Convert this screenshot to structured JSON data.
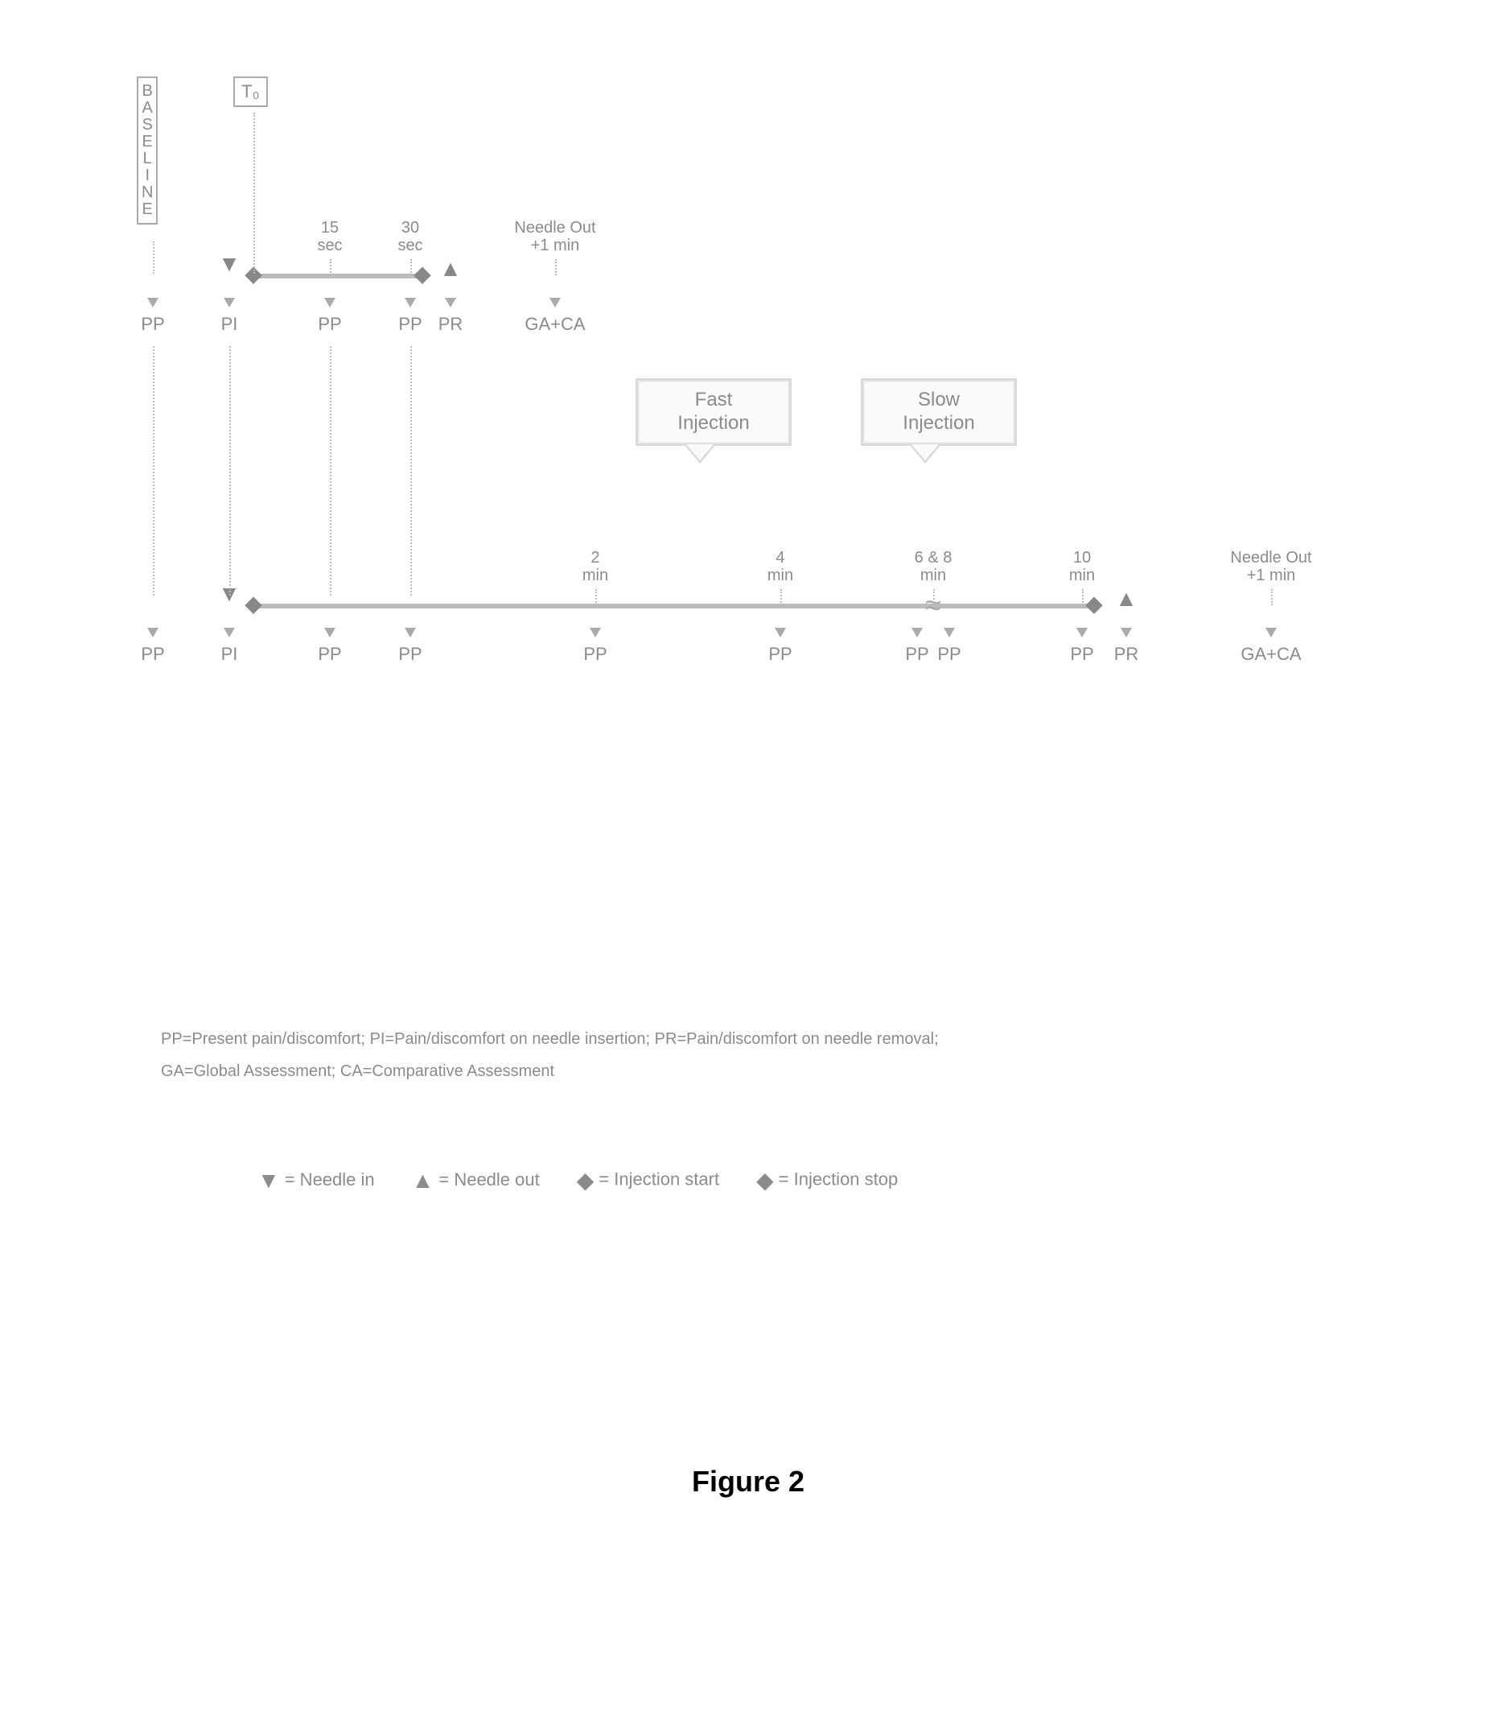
{
  "layout": {
    "topTimelineY": 300,
    "bottomTimelineY": 710,
    "topLength": 360,
    "bottomLength": 1210,
    "baselineX": 0,
    "xNeedleIn": 85,
    "xStart": 115,
    "x15": 210,
    "x30": 310,
    "xStop": 325,
    "xNeedleOutTri": 360,
    "xNeedleOutPlus1": 490,
    "bx_needle": 85,
    "bx_start": 115,
    "bx_pp15": 210,
    "bx_pp30": 310,
    "bx_2": 540,
    "bx_4": 770,
    "bx_68a": 940,
    "bx_68b": 980,
    "bx_10": 1145,
    "bx_stop": 1160,
    "bx_tri": 1200,
    "bx_out1": 1380
  },
  "colors": {
    "line": "#BBBBBB",
    "text": "#8B8B8B",
    "box": "#AAAAAA"
  },
  "text": {
    "baseline": "BASELINE",
    "t0": "T₀",
    "sec15": "15\nsec",
    "sec30": "30\nsec",
    "needleOut": "Needle Out\n+1 min",
    "min2": "2\nmin",
    "min4": "4\nmin",
    "min68": "6 & 8\nmin",
    "min10": "10\nmin",
    "PP": "PP",
    "PI": "PI",
    "PR": "PR",
    "GACA": "GA+CA",
    "fastInjection": "Fast\nInjection",
    "slowInjection": "Slow\nInjection",
    "notes1": "PP=Present pain/discomfort;  PI=Pain/discomfort on needle insertion;  PR=Pain/discomfort on needle removal;",
    "notes2": "GA=Global Assessment;  CA=Comparative Assessment",
    "legendNeedleIn": "= Needle in",
    "legendNeedleOut": "= Needle out",
    "legendStart": "= Injection start",
    "legendStop": "= Injection stop",
    "caption": "Figure 2"
  },
  "symbols": {
    "needleIn": "▼",
    "needleOut": "▲",
    "injStart": "◆",
    "injStop": "◆"
  }
}
